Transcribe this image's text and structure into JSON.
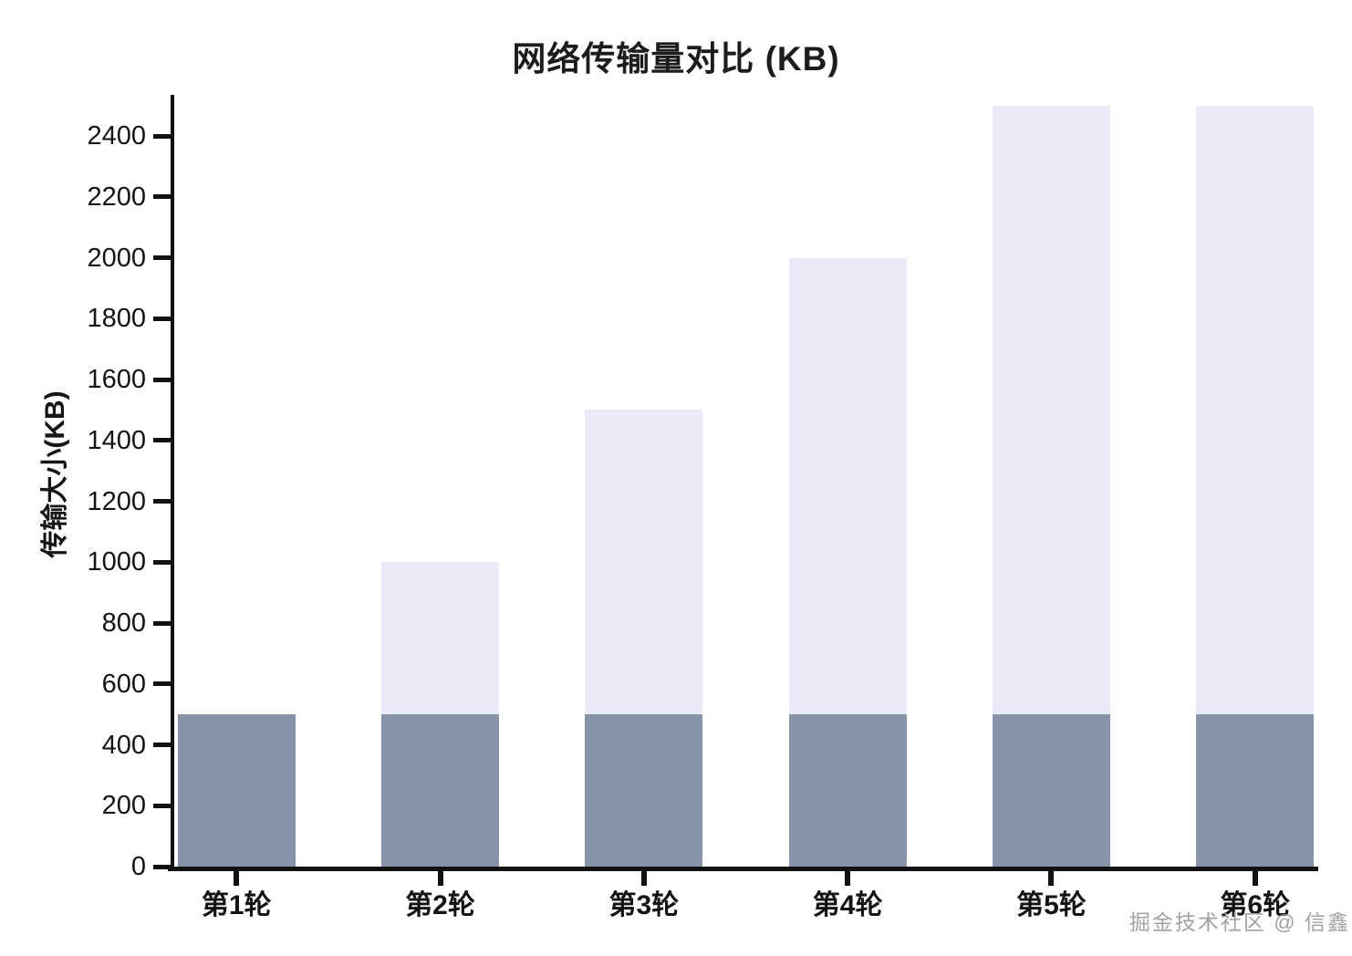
{
  "title": "网络传输量对比 (KB)",
  "watermark": "掘金技术社区 @ 信鑫",
  "colors": {
    "light_bar": "#e9e9f8",
    "dark_bar": "#8793a8",
    "axis": "#111111",
    "text": "#141414",
    "watermark_text": "#a2a2a2"
  },
  "chart_data": {
    "type": "bar",
    "title": "网络传输量对比 (KB)",
    "xlabel": "",
    "ylabel": "传输大小(KB)",
    "categories": [
      "第1轮",
      "第2轮",
      "第3轮",
      "第4轮",
      "第5轮",
      "第6轮"
    ],
    "series": [
      {
        "name": "light_series",
        "color": "#e9e9f8",
        "values": [
          500,
          1000,
          1500,
          2000,
          2500,
          2500
        ]
      },
      {
        "name": "dark_series",
        "color": "#8793a8",
        "values": [
          500,
          500,
          500,
          500,
          500,
          500
        ]
      }
    ],
    "y_ticks": [
      0,
      200,
      400,
      600,
      800,
      1000,
      1200,
      1400,
      1600,
      1800,
      2000,
      2200,
      2400
    ],
    "ylim": [
      0,
      2535
    ],
    "grid": false,
    "legend_position": "none",
    "bars_overlap": true
  }
}
